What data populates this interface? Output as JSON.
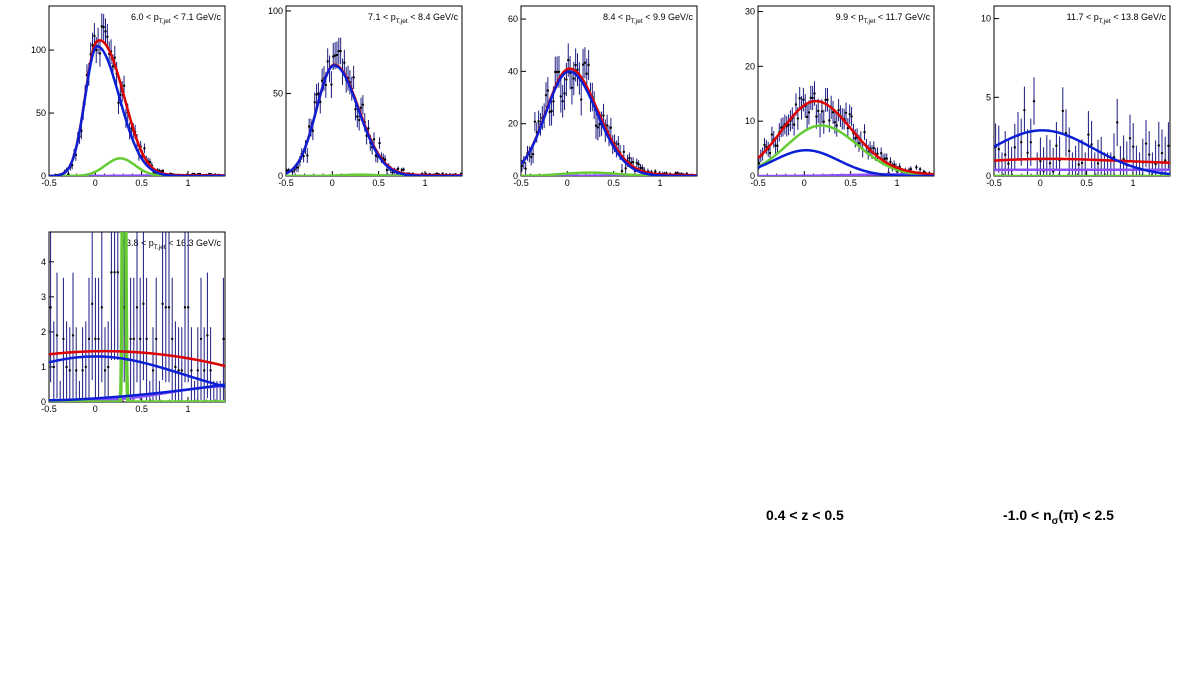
{
  "cuts": {
    "z_label": "0.4 < z < 0.5",
    "nsigma_prefix": "-1.0 < n",
    "nsigma_sub": "σ",
    "nsigma_suffix": "(π) < 2.5"
  },
  "colors": {
    "data": "#1a1a80",
    "total_fit": "#dd0000",
    "pion_fit": "#0b1fd6",
    "kaon_fit": "#66cc33",
    "proton_fit": "#8a4fff"
  },
  "chart_data": [
    {
      "type": "line",
      "title": "6.0 < p_T,jet < 7.1 GeV/c",
      "title_prefix": "6.0 < p",
      "title_sub": "T,jet",
      "title_suffix": " < 7.1 GeV/c",
      "xlim": [
        -0.5,
        1.4
      ],
      "ylim": [
        0,
        135
      ],
      "xticks": [
        -0.5,
        0,
        0.5,
        1
      ],
      "yticks": [
        0,
        50,
        100
      ],
      "fits": {
        "pion": {
          "amp": 103,
          "mu": 0.02,
          "sigma": 0.13,
          "sigma_right": 0.24,
          "base": 0
        },
        "kaon": {
          "amp": 14,
          "mu": 0.27,
          "sigma": 0.16,
          "base": 0
        },
        "proton": {
          "amp": 0.6,
          "mu": 1.0,
          "sigma": 0.5,
          "base": 0
        }
      },
      "data_stat_scale": 1.0
    },
    {
      "type": "line",
      "title": "7.1 < p_T,jet < 8.4 GeV/c",
      "title_prefix": "7.1 < p",
      "title_sub": "T,jet",
      "title_suffix": " < 8.4 GeV/c",
      "xlim": [
        -0.5,
        1.4
      ],
      "ylim": [
        0,
        103
      ],
      "xticks": [
        -0.5,
        0,
        0.5,
        1
      ],
      "yticks": [
        0,
        50,
        100
      ],
      "fits": {
        "pion": {
          "amp": 67,
          "mu": 0.02,
          "sigma": 0.19,
          "sigma_right": 0.26,
          "base": 0
        },
        "kaon": {
          "amp": 0.8,
          "mu": 0.3,
          "sigma": 0.2,
          "base": 0
        },
        "proton": {
          "amp": 0.5,
          "mu": 1.0,
          "sigma": 0.5,
          "base": 0
        }
      },
      "data_stat_scale": 1.0
    },
    {
      "type": "line",
      "title": "8.4 < p_T,jet < 9.9 GeV/c",
      "title_prefix": "8.4 < p",
      "title_sub": "T,jet",
      "title_suffix": " < 9.9 GeV/c",
      "xlim": [
        -0.5,
        1.4
      ],
      "ylim": [
        0,
        65
      ],
      "xticks": [
        -0.5,
        0,
        0.5,
        1
      ],
      "yticks": [
        0,
        20,
        40,
        60
      ],
      "fits": {
        "pion": {
          "amp": 40,
          "mu": 0.02,
          "sigma": 0.25,
          "sigma_right": 0.3,
          "base": 0
        },
        "kaon": {
          "amp": 1.3,
          "mu": 0.25,
          "sigma": 0.3,
          "base": 0
        },
        "proton": {
          "amp": 0.4,
          "mu": 1.0,
          "sigma": 0.5,
          "base": 0
        }
      },
      "data_stat_scale": 1.0
    },
    {
      "type": "line",
      "title": "9.9 < p_T,jet < 11.7 GeV/c",
      "title_prefix": "9.9 < p",
      "title_sub": "T,jet",
      "title_suffix": " < 11.7 GeV/c",
      "xlim": [
        -0.5,
        1.4
      ],
      "ylim": [
        0,
        31
      ],
      "xticks": [
        -0.5,
        0,
        0.5,
        1
      ],
      "yticks": [
        0,
        10,
        20,
        30
      ],
      "fits": {
        "pion": {
          "amp": 4.7,
          "mu": 0.02,
          "sigma": 0.35,
          "sigma_right": 0.35,
          "base": 0
        },
        "kaon": {
          "amp": 9.2,
          "mu": 0.18,
          "sigma": 0.37,
          "sigma_right": 0.4,
          "base": 0
        },
        "proton": {
          "amp": 0.3,
          "mu": 1.0,
          "sigma": 0.5,
          "base": 0
        }
      },
      "data_stat_scale": 1.0
    },
    {
      "type": "line",
      "title": "11.7 < p_T,jet < 13.8 GeV/c",
      "title_prefix": "11.7 < p",
      "title_sub": "T,jet",
      "title_suffix": " < 13.8 GeV/c",
      "xlim": [
        -0.5,
        1.4
      ],
      "ylim": [
        0,
        10.8
      ],
      "xticks": [
        -0.5,
        0,
        0.5,
        1
      ],
      "yticks": [
        0,
        5,
        10
      ],
      "fits": {
        "pion": {
          "amp": 2.9,
          "mu": 0.02,
          "sigma": 0.55,
          "sigma_right": 0.55,
          "base": 0
        },
        "kaon": {
          "amp": 0.0,
          "mu": 0.3,
          "sigma": 0.3,
          "base": 0
        },
        "proton": {
          "amp": 0.4,
          "mu": 0.5,
          "sigma": 5,
          "base": 0
        },
        "total_extra": {
          "amp": 0.55,
          "mu": 0.3,
          "sigma": 1.6,
          "base": 0.4
        }
      },
      "data_stat_scale": 1.0
    },
    {
      "type": "line",
      "title": "13.8 < p_T,jet < 16.3 GeV/c",
      "title_prefix": "13.8 < p",
      "title_sub": "T,jet",
      "title_suffix": " < 16.3 GeV/c",
      "xlim": [
        -0.5,
        1.4
      ],
      "ylim": [
        0,
        4.85
      ],
      "xticks": [
        -0.5,
        0,
        0.5,
        1
      ],
      "yticks": [
        0,
        1,
        2,
        3,
        4
      ],
      "fits": {
        "pion": {
          "amp": 1.3,
          "mu": 0.0,
          "sigma": 0.7,
          "sigma_right": 0.7,
          "base": 0
        },
        "kaon": {
          "amp": 20,
          "mu": 0.31,
          "sigma": 0.012,
          "base": 0
        },
        "proton": {
          "amp": 0.45,
          "mu": 1.45,
          "sigma": 0.65,
          "base": 0
        },
        "total_override": true
      },
      "data_stat_scale": 1.0
    }
  ]
}
